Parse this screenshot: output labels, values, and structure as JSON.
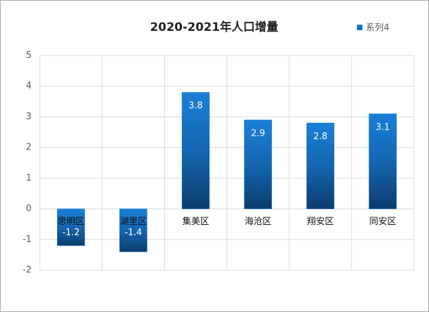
{
  "chart_data": {
    "type": "bar",
    "title": "2020-2021年人口增量",
    "categories": [
      "思明区",
      "湖里区",
      "集美区",
      "海沧区",
      "翔安区",
      "同安区"
    ],
    "series": [
      {
        "name": "系列4",
        "color": "#1572c8",
        "values": [
          -1.2,
          -1.4,
          3.8,
          2.9,
          2.8,
          3.1
        ]
      }
    ],
    "ylim": [
      -2,
      5
    ],
    "yticks": [
      -2,
      -1,
      0,
      1,
      2,
      3,
      4,
      5
    ],
    "grid": true,
    "legend": "top-right"
  }
}
